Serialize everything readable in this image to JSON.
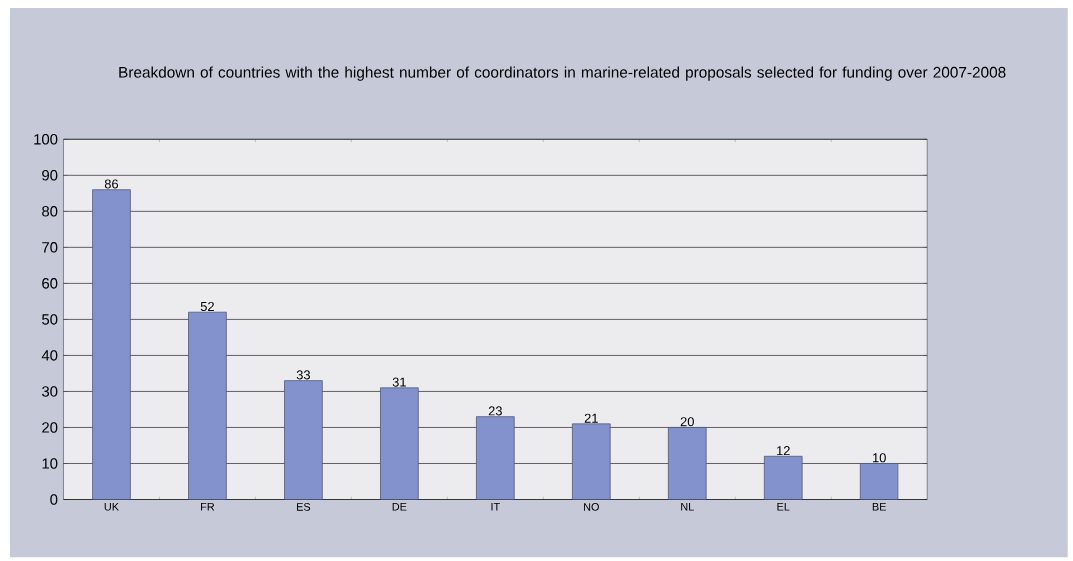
{
  "chart_data": {
    "type": "bar",
    "title": "Breakdown of countries with the highest number of coordinators in marine-related proposals selected for funding over 2007-2008",
    "categories": [
      "UK",
      "FR",
      "ES",
      "DE",
      "IT",
      "NO",
      "NL",
      "EL",
      "BE"
    ],
    "values": [
      86,
      52,
      33,
      31,
      23,
      21,
      20,
      12,
      10
    ],
    "color": "#8392cc",
    "ylim": [
      0,
      100
    ],
    "yticks": [
      0,
      10,
      20,
      30,
      40,
      50,
      60,
      70,
      80,
      90,
      100
    ],
    "grid": "y",
    "data_labels": true
  }
}
